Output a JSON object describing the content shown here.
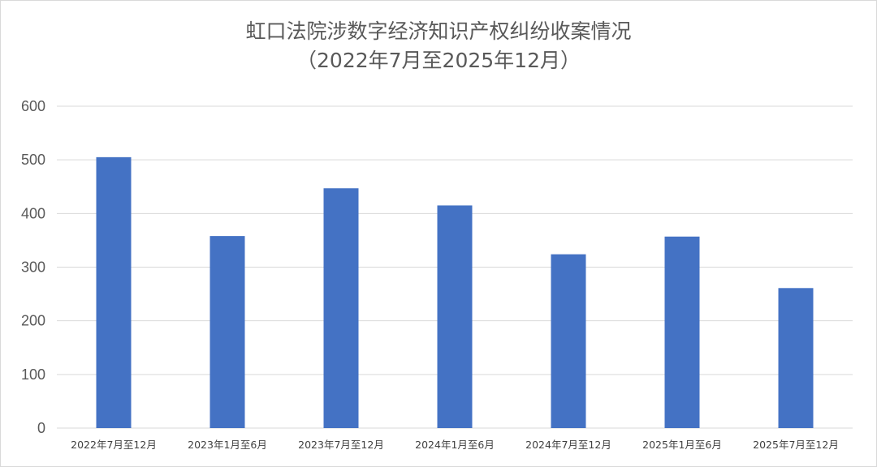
{
  "chart_data": {
    "type": "bar",
    "title": "虹口法院涉数字经济知识产权纠纷收案情况",
    "subtitle": "（2022年7月至2025年12月）",
    "categories": [
      "2022年7月至12月",
      "2023年1月至6月",
      "2023年7月至12月",
      "2024年1月至6月",
      "2024年7月至12月",
      "2025年1月至6月",
      "2025年7月至12月"
    ],
    "values": [
      505,
      358,
      447,
      415,
      324,
      357,
      261
    ],
    "ylim": [
      0,
      600
    ],
    "yticks": [
      0,
      100,
      200,
      300,
      400,
      500,
      600
    ],
    "grid": true,
    "legend": "none",
    "colors": {
      "bar": "#4472C4",
      "grid": "#d9d9d9",
      "axis": "#d9d9d9"
    }
  }
}
